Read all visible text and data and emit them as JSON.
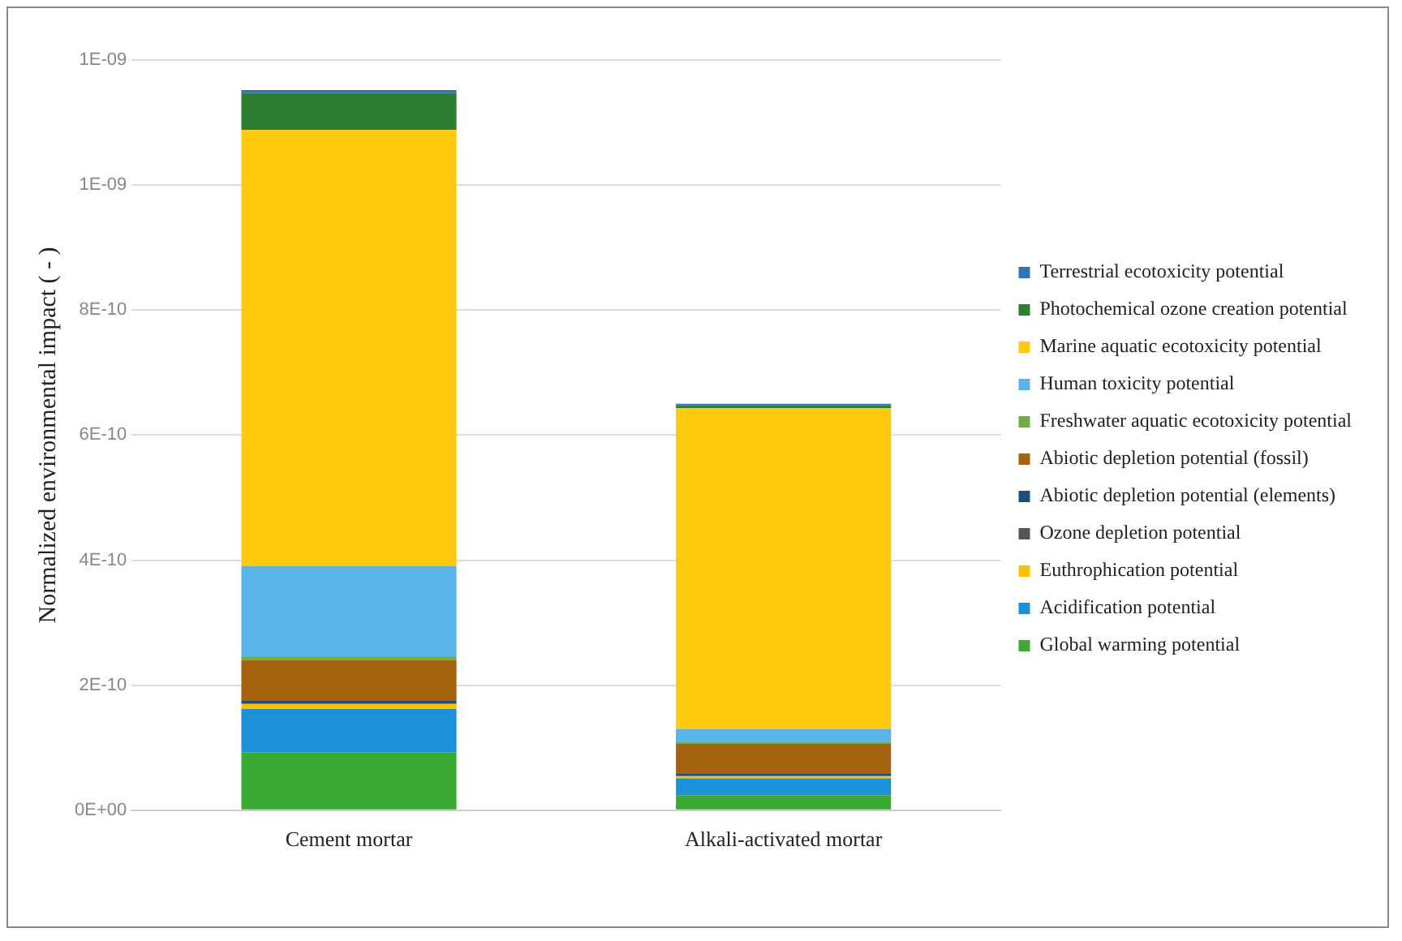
{
  "chart_data": {
    "type": "bar",
    "stacked": true,
    "ylabel": "Normalized environmental impact ( - )",
    "categories": [
      "Cement mortar",
      "Alkali-activated mortar"
    ],
    "ylim": [
      0,
      1.2e-09
    ],
    "yticks": [
      {
        "value": 0,
        "label": "0E+00"
      },
      {
        "value": 2e-10,
        "label": "2E-10"
      },
      {
        "value": 4e-10,
        "label": "4E-10"
      },
      {
        "value": 6e-10,
        "label": "6E-10"
      },
      {
        "value": 8e-10,
        "label": "8E-10"
      },
      {
        "value": 1e-09,
        "label": "1E-09"
      },
      {
        "value": 1.2e-09,
        "label": "1E-09"
      }
    ],
    "grid": "y",
    "legend": "right",
    "series": [
      {
        "name": "Global warming potential",
        "color": "#3aaa35",
        "values": [
          9.3e-11,
          2.4e-11
        ]
      },
      {
        "name": "Acidification potential",
        "color": "#1e90d8",
        "values": [
          6.9e-11,
          2.7e-11
        ]
      },
      {
        "name": "Euthrophication potential",
        "color": "#ffc000",
        "values": [
          8e-12,
          3e-12
        ]
      },
      {
        "name": "Ozone depletion potential",
        "color": "#555555",
        "values": [
          1e-12,
          1e-12
        ]
      },
      {
        "name": "Abiotic depletion potential (elements)",
        "color": "#1f4e79",
        "values": [
          5e-12,
          3e-12
        ]
      },
      {
        "name": "Abiotic depletion potential (fossil)",
        "color": "#a5620f",
        "values": [
          6.4e-11,
          4.8e-11
        ]
      },
      {
        "name": "Freshwater aquatic ecotoxicity potential",
        "color": "#70ad47",
        "values": [
          5e-12,
          3e-12
        ]
      },
      {
        "name": "Human toxicity potential",
        "color": "#5ab4e8",
        "values": [
          1.46e-10,
          2.1e-11
        ]
      },
      {
        "name": "Marine aquatic ecotoxicity potential",
        "color": "#ffc90e",
        "values": [
          6.97e-10,
          5.13e-10
        ]
      },
      {
        "name": "Photochemical ozone creation potential",
        "color": "#2e7d32",
        "values": [
          5.9e-11,
          5e-12
        ]
      },
      {
        "name": "Terrestrial ecotoxicity potential",
        "color": "#2e75b6",
        "values": [
          5e-12,
          2e-12
        ]
      }
    ]
  }
}
